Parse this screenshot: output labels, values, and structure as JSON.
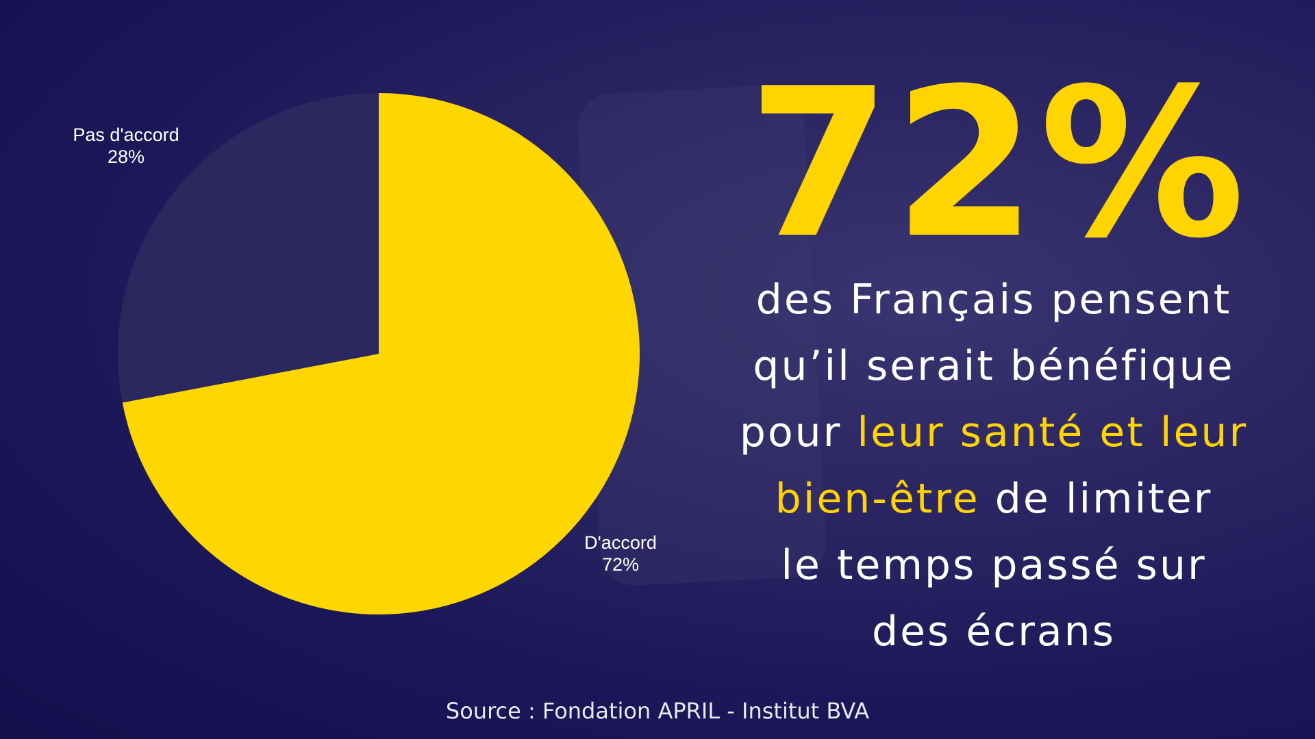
{
  "chart_data": {
    "type": "pie",
    "slices": [
      {
        "label": "D'accord",
        "value": 72,
        "value_label": "72%",
        "color": "#ffd700"
      },
      {
        "label": "Pas d'accord",
        "value": 28,
        "value_label": "28%",
        "color": "#2b2860"
      }
    ],
    "start_angle": "12 o'clock",
    "direction": "clockwise"
  },
  "headline": {
    "value": "72%"
  },
  "message": {
    "line1": "des Français pensent",
    "line2": "qu’il serait bénéfique",
    "line3_a": "pour ",
    "line3_b": "leur santé et leur",
    "line4_a": "bien-être",
    "line4_b": " de limiter",
    "line5": "le temps passé sur",
    "line6": "des écrans"
  },
  "source": "Source : Fondation APRIL - Institut BVA",
  "colors": {
    "accent": "#ffd400",
    "background": "#1c1758"
  }
}
